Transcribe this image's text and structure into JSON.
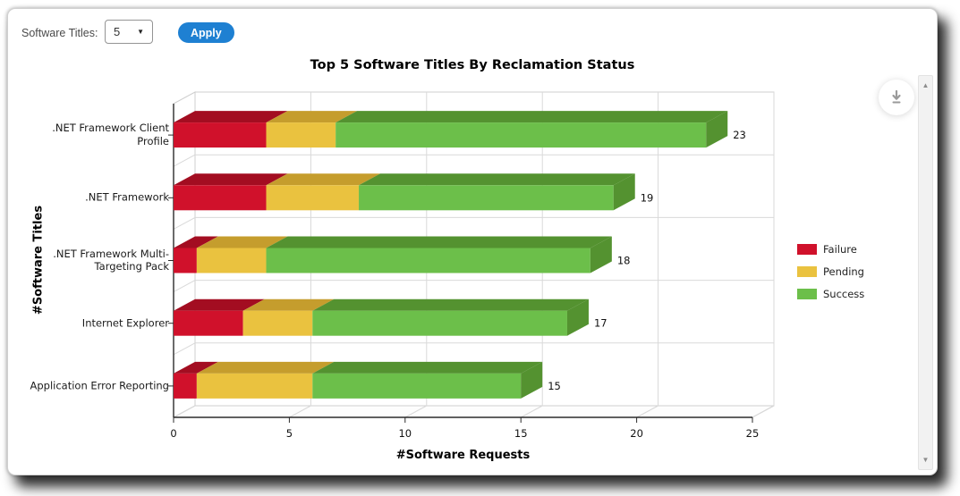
{
  "toolbar": {
    "label": "Software Titles:",
    "select_value": "5",
    "apply_label": "Apply",
    "accent_color": "#1e80d2"
  },
  "chart_data": {
    "type": "bar",
    "orientation": "horizontal",
    "stacked": true,
    "effect": "3d",
    "title": "Top 5 Software Titles By Reclamation Status",
    "xlabel": "#Software Requests",
    "ylabel": "#Software Titles",
    "xlim": [
      0,
      25
    ],
    "xticks": [
      0,
      5,
      10,
      15,
      20,
      25
    ],
    "grid": true,
    "legend_position": "right",
    "categories": [
      ".NET Framework Client Profile",
      ".NET Framework",
      ".NET Framework Multi-Targeting Pack",
      "Internet Explorer",
      "Application Error Reporting"
    ],
    "series": [
      {
        "name": "Failure",
        "color": "#d0112b",
        "dark_color": "#a30d21",
        "values": [
          4,
          4,
          1,
          3,
          1
        ]
      },
      {
        "name": "Pending",
        "color": "#eac23f",
        "dark_color": "#c59d2d",
        "values": [
          3,
          4,
          3,
          3,
          5
        ]
      },
      {
        "name": "Success",
        "color": "#6cbf4a",
        "dark_color": "#549230",
        "values": [
          16,
          11,
          14,
          11,
          9
        ]
      }
    ],
    "totals": [
      23,
      19,
      18,
      17,
      15
    ]
  },
  "icons": {
    "download": "download-arrow",
    "scroll_up": "▲",
    "scroll_down": "▼"
  }
}
